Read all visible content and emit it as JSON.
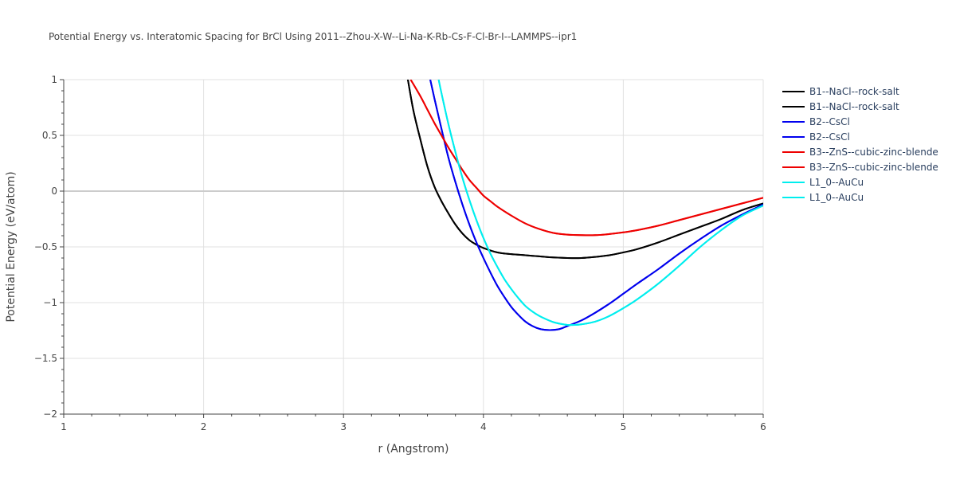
{
  "chart_data": {
    "type": "line",
    "title": "Potential Energy vs. Interatomic Spacing for BrCl Using 2011--Zhou-X-W--Li-Na-K-Rb-Cs-F-Cl-Br-I--LAMMPS--ipr1",
    "xlabel": "r (Angstrom)",
    "ylabel": "Potential Energy (eV/atom)",
    "xlim": [
      1,
      6
    ],
    "ylim": [
      -2,
      1
    ],
    "xticks": [
      1,
      2,
      3,
      4,
      5,
      6
    ],
    "xtick_labels": [
      "1",
      "2",
      "3",
      "4",
      "5",
      "6"
    ],
    "yticks": [
      1,
      0.5,
      0,
      -0.5,
      -1,
      -1.5,
      -2
    ],
    "ytick_labels": [
      "1",
      "0.5",
      "0",
      "−0.5",
      "−1",
      "−1.5",
      "−2"
    ],
    "grid": true,
    "legend_position": "top-right outside",
    "series": [
      {
        "name": "B1--NaCl--rock-salt",
        "color": "#000000",
        "x": [
          3.46,
          3.5,
          3.55,
          3.6,
          3.65,
          3.7,
          3.75,
          3.8,
          3.85,
          3.9,
          3.95,
          4.0,
          4.1,
          4.2,
          4.3,
          4.4,
          4.5,
          4.6,
          4.7,
          4.8,
          4.9,
          5.0,
          5.1,
          5.25,
          5.4,
          5.55,
          5.7,
          5.85,
          6.0
        ],
        "values": [
          1.0,
          0.72,
          0.46,
          0.22,
          0.04,
          -0.09,
          -0.2,
          -0.3,
          -0.38,
          -0.44,
          -0.48,
          -0.51,
          -0.55,
          -0.565,
          -0.575,
          -0.585,
          -0.595,
          -0.6,
          -0.6,
          -0.59,
          -0.575,
          -0.55,
          -0.52,
          -0.46,
          -0.39,
          -0.32,
          -0.25,
          -0.17,
          -0.11
        ]
      },
      {
        "name": "B1--NaCl--rock-salt",
        "color": "#000000",
        "x": [
          3.46,
          3.5,
          3.55,
          3.6,
          3.65,
          3.7,
          3.75,
          3.8,
          3.85,
          3.9,
          3.95,
          4.0,
          4.1,
          4.2,
          4.3,
          4.4,
          4.5,
          4.6,
          4.7,
          4.8,
          4.9,
          5.0,
          5.1,
          5.25,
          5.4,
          5.55,
          5.7,
          5.85,
          6.0
        ],
        "values": [
          1.0,
          0.72,
          0.46,
          0.22,
          0.04,
          -0.09,
          -0.2,
          -0.3,
          -0.38,
          -0.44,
          -0.48,
          -0.51,
          -0.55,
          -0.565,
          -0.575,
          -0.585,
          -0.595,
          -0.6,
          -0.6,
          -0.59,
          -0.575,
          -0.55,
          -0.52,
          -0.46,
          -0.39,
          -0.32,
          -0.25,
          -0.17,
          -0.11
        ]
      },
      {
        "name": "B2--CsCl",
        "color": "#0000ee",
        "x": [
          3.62,
          3.65,
          3.7,
          3.75,
          3.8,
          3.85,
          3.9,
          3.95,
          4.0,
          4.05,
          4.1,
          4.15,
          4.2,
          4.25,
          4.3,
          4.35,
          4.4,
          4.45,
          4.5,
          4.55,
          4.6,
          4.7,
          4.8,
          4.9,
          5.0,
          5.1,
          5.25,
          5.4,
          5.55,
          5.7,
          5.85,
          6.0
        ],
        "values": [
          1.0,
          0.83,
          0.56,
          0.3,
          0.08,
          -0.12,
          -0.3,
          -0.46,
          -0.6,
          -0.73,
          -0.85,
          -0.95,
          -1.04,
          -1.11,
          -1.17,
          -1.21,
          -1.235,
          -1.245,
          -1.245,
          -1.235,
          -1.21,
          -1.16,
          -1.09,
          -1.01,
          -0.92,
          -0.83,
          -0.7,
          -0.56,
          -0.43,
          -0.31,
          -0.21,
          -0.12
        ]
      },
      {
        "name": "B2--CsCl",
        "color": "#0000ee",
        "x": [
          3.62,
          3.65,
          3.7,
          3.75,
          3.8,
          3.85,
          3.9,
          3.95,
          4.0,
          4.05,
          4.1,
          4.15,
          4.2,
          4.25,
          4.3,
          4.35,
          4.4,
          4.45,
          4.5,
          4.55,
          4.6,
          4.7,
          4.8,
          4.9,
          5.0,
          5.1,
          5.25,
          5.4,
          5.55,
          5.7,
          5.85,
          6.0
        ],
        "values": [
          1.0,
          0.83,
          0.56,
          0.3,
          0.08,
          -0.12,
          -0.3,
          -0.46,
          -0.6,
          -0.73,
          -0.85,
          -0.95,
          -1.04,
          -1.11,
          -1.17,
          -1.21,
          -1.235,
          -1.245,
          -1.245,
          -1.235,
          -1.21,
          -1.16,
          -1.09,
          -1.01,
          -0.92,
          -0.83,
          -0.7,
          -0.56,
          -0.43,
          -0.31,
          -0.21,
          -0.12
        ]
      },
      {
        "name": "B3--ZnS--cubic-zinc-blende",
        "color": "#ee0000",
        "x": [
          3.48,
          3.55,
          3.6,
          3.65,
          3.7,
          3.75,
          3.8,
          3.85,
          3.9,
          3.95,
          4.0,
          4.05,
          4.1,
          4.2,
          4.3,
          4.4,
          4.5,
          4.6,
          4.7,
          4.8,
          4.9,
          5.0,
          5.1,
          5.25,
          5.4,
          5.55,
          5.7,
          5.85,
          6.0
        ],
        "values": [
          1.0,
          0.85,
          0.73,
          0.61,
          0.5,
          0.39,
          0.29,
          0.19,
          0.1,
          0.03,
          -0.04,
          -0.09,
          -0.14,
          -0.22,
          -0.29,
          -0.34,
          -0.375,
          -0.39,
          -0.395,
          -0.395,
          -0.385,
          -0.37,
          -0.35,
          -0.31,
          -0.26,
          -0.21,
          -0.16,
          -0.11,
          -0.06
        ]
      },
      {
        "name": "B3--ZnS--cubic-zinc-blende",
        "color": "#ee0000",
        "x": [
          3.48,
          3.55,
          3.6,
          3.65,
          3.7,
          3.75,
          3.8,
          3.85,
          3.9,
          3.95,
          4.0,
          4.05,
          4.1,
          4.2,
          4.3,
          4.4,
          4.5,
          4.6,
          4.7,
          4.8,
          4.9,
          5.0,
          5.1,
          5.25,
          5.4,
          5.55,
          5.7,
          5.85,
          6.0
        ],
        "values": [
          1.0,
          0.85,
          0.73,
          0.61,
          0.5,
          0.39,
          0.29,
          0.19,
          0.1,
          0.03,
          -0.04,
          -0.09,
          -0.14,
          -0.22,
          -0.29,
          -0.34,
          -0.375,
          -0.39,
          -0.395,
          -0.395,
          -0.385,
          -0.37,
          -0.35,
          -0.31,
          -0.26,
          -0.21,
          -0.16,
          -0.11,
          -0.06
        ]
      },
      {
        "name": "L1_0--AuCu",
        "color": "#00eeee",
        "x": [
          3.68,
          3.7,
          3.75,
          3.8,
          3.85,
          3.9,
          3.95,
          4.0,
          4.05,
          4.1,
          4.15,
          4.2,
          4.25,
          4.3,
          4.35,
          4.4,
          4.45,
          4.5,
          4.55,
          4.6,
          4.65,
          4.7,
          4.8,
          4.9,
          5.0,
          5.1,
          5.25,
          5.4,
          5.55,
          5.7,
          5.85,
          6.0
        ],
        "values": [
          1.0,
          0.88,
          0.6,
          0.35,
          0.12,
          -0.08,
          -0.26,
          -0.42,
          -0.56,
          -0.68,
          -0.79,
          -0.88,
          -0.96,
          -1.03,
          -1.08,
          -1.12,
          -1.15,
          -1.175,
          -1.19,
          -1.2,
          -1.2,
          -1.195,
          -1.17,
          -1.12,
          -1.05,
          -0.97,
          -0.83,
          -0.67,
          -0.5,
          -0.35,
          -0.22,
          -0.13
        ]
      },
      {
        "name": "L1_0--AuCu",
        "color": "#00eeee",
        "x": [
          3.68,
          3.7,
          3.75,
          3.8,
          3.85,
          3.9,
          3.95,
          4.0,
          4.05,
          4.1,
          4.15,
          4.2,
          4.25,
          4.3,
          4.35,
          4.4,
          4.45,
          4.5,
          4.55,
          4.6,
          4.65,
          4.7,
          4.8,
          4.9,
          5.0,
          5.1,
          5.25,
          5.4,
          5.55,
          5.7,
          5.85,
          6.0
        ],
        "values": [
          1.0,
          0.88,
          0.6,
          0.35,
          0.12,
          -0.08,
          -0.26,
          -0.42,
          -0.56,
          -0.68,
          -0.79,
          -0.88,
          -0.96,
          -1.03,
          -1.08,
          -1.12,
          -1.15,
          -1.175,
          -1.19,
          -1.2,
          -1.2,
          -1.195,
          -1.17,
          -1.12,
          -1.05,
          -0.97,
          -0.83,
          -0.67,
          -0.5,
          -0.35,
          -0.22,
          -0.13
        ]
      }
    ]
  }
}
